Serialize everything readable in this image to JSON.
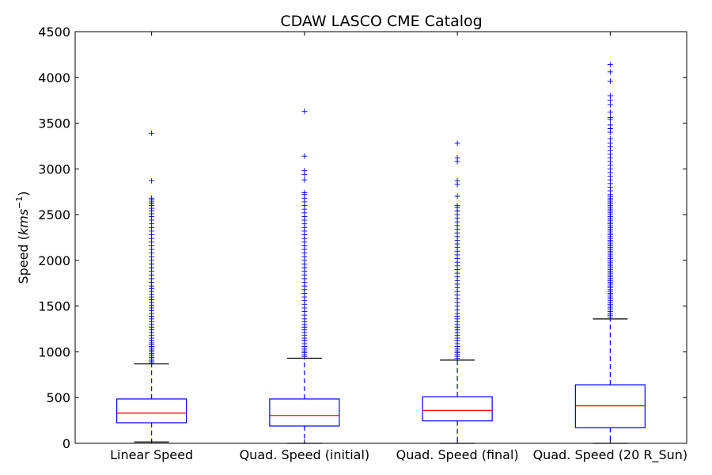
{
  "chart_data": {
    "type": "boxplot",
    "title": "CDAW LASCO CME Catalog",
    "ylabel": "Speed (kms⁻¹)",
    "ylabel_text": "Speed (",
    "ylabel_unit": "kms",
    "ylabel_exp": "−1",
    "ylabel_close": ")",
    "ylim": [
      0,
      4500
    ],
    "yticks": [
      0,
      500,
      1000,
      1500,
      2000,
      2500,
      3000,
      3500,
      4000,
      4500
    ],
    "ytick_labels": [
      "0",
      "500",
      "1000",
      "1500",
      "2000",
      "2500",
      "3000",
      "3500",
      "4000",
      "4500"
    ],
    "categories": [
      "Linear Speed",
      "Quad. Speed (initial)",
      "Quad. Speed (final)",
      "Quad. Speed (20 R_Sun)"
    ],
    "colors": {
      "box": "#0000ff",
      "median": "#ff0000",
      "cap": "#000000",
      "flier": "#0000ff"
    },
    "boxes": [
      {
        "name": "Linear Speed",
        "whisker_low": 15,
        "q1": 225,
        "median": 330,
        "q3": 485,
        "whisker_high": 868,
        "fliers": [
          880,
          900,
          920,
          940,
          960,
          980,
          1000,
          1020,
          1040,
          1060,
          1080,
          1100,
          1120,
          1150,
          1180,
          1210,
          1240,
          1270,
          1300,
          1330,
          1360,
          1390,
          1420,
          1450,
          1480,
          1510,
          1540,
          1570,
          1600,
          1630,
          1660,
          1690,
          1720,
          1760,
          1800,
          1840,
          1880,
          1920,
          1960,
          2000,
          2040,
          2080,
          2120,
          2160,
          2200,
          2240,
          2280,
          2320,
          2360,
          2400,
          2440,
          2480,
          2510,
          2540,
          2570,
          2600,
          2620,
          2640,
          2660,
          2680,
          2870,
          3390
        ]
      },
      {
        "name": "Quad. Speed (initial)",
        "whisker_low": 0,
        "q1": 190,
        "median": 305,
        "q3": 485,
        "whisker_high": 930,
        "fliers": [
          950,
          970,
          990,
          1010,
          1030,
          1060,
          1090,
          1120,
          1150,
          1180,
          1210,
          1240,
          1270,
          1300,
          1330,
          1360,
          1400,
          1440,
          1480,
          1520,
          1560,
          1600,
          1640,
          1680,
          1720,
          1760,
          1800,
          1840,
          1880,
          1920,
          1960,
          2000,
          2040,
          2080,
          2120,
          2160,
          2200,
          2240,
          2280,
          2320,
          2360,
          2400,
          2440,
          2480,
          2520,
          2560,
          2600,
          2640,
          2680,
          2720,
          2740,
          2880,
          2940,
          2980,
          3140,
          3630
        ]
      },
      {
        "name": "Quad. Speed (final)",
        "whisker_low": 0,
        "q1": 245,
        "median": 360,
        "q3": 510,
        "whisker_high": 910,
        "fliers": [
          930,
          950,
          970,
          990,
          1010,
          1030,
          1060,
          1090,
          1120,
          1150,
          1180,
          1210,
          1240,
          1270,
          1300,
          1330,
          1360,
          1390,
          1420,
          1460,
          1500,
          1540,
          1580,
          1620,
          1660,
          1700,
          1740,
          1780,
          1820,
          1860,
          1900,
          1940,
          1980,
          2020,
          2060,
          2100,
          2140,
          2180,
          2220,
          2260,
          2300,
          2340,
          2380,
          2420,
          2460,
          2500,
          2540,
          2580,
          2600,
          2700,
          2830,
          2870,
          3080,
          3120,
          3280
        ]
      },
      {
        "name": "Quad. Speed (20 R_Sun)",
        "whisker_low": 0,
        "q1": 170,
        "median": 410,
        "q3": 640,
        "whisker_high": 1360,
        "fliers": [
          1380,
          1400,
          1420,
          1440,
          1460,
          1480,
          1500,
          1520,
          1540,
          1560,
          1580,
          1600,
          1620,
          1640,
          1660,
          1680,
          1700,
          1720,
          1740,
          1760,
          1780,
          1800,
          1820,
          1840,
          1860,
          1880,
          1900,
          1920,
          1940,
          1960,
          1980,
          2000,
          2020,
          2040,
          2060,
          2080,
          2100,
          2120,
          2140,
          2160,
          2180,
          2200,
          2220,
          2240,
          2260,
          2280,
          2300,
          2320,
          2340,
          2360,
          2380,
          2400,
          2420,
          2440,
          2460,
          2480,
          2500,
          2520,
          2540,
          2560,
          2580,
          2600,
          2620,
          2640,
          2660,
          2680,
          2700,
          2720,
          2760,
          2800,
          2840,
          2880,
          2920,
          2960,
          3000,
          3040,
          3080,
          3120,
          3160,
          3200,
          3240,
          3280,
          3330,
          3400,
          3440,
          3480,
          3540,
          3560,
          3620,
          3700,
          3750,
          3800,
          3960,
          4060,
          4140
        ]
      }
    ],
    "grid": false,
    "legend": "none"
  }
}
